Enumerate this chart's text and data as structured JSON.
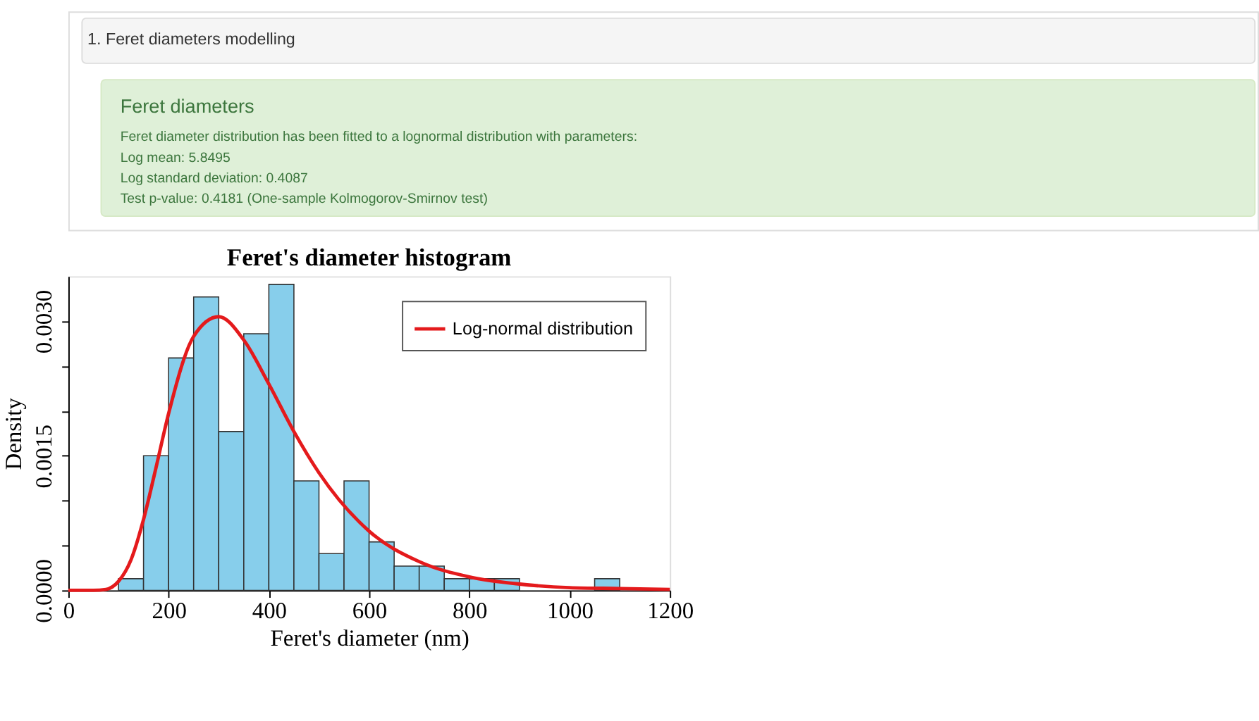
{
  "chart_data": {
    "type": "histogram",
    "title": "Feret's diameter histogram",
    "xlabel": "Feret's diameter (nm)",
    "ylabel": "Density",
    "annotations": [
      "1. Feret diameters modelling",
      "Feret diameters",
      "Feret diameter distribution has been fitted to a lognormal distribution with parameters:",
      "Log mean: 5.8495",
      "Log standard deviation: 0.4087",
      "Test p-value: 0.4181 (One-sample Kolmogorov-Smirnov test)"
    ],
    "bins": [
      100,
      150,
      200,
      250,
      300,
      350,
      400,
      450,
      500,
      550,
      600,
      650,
      700,
      750,
      800,
      850,
      900,
      950,
      1000,
      1050,
      1100
    ],
    "values": [
      0.00013,
      0.0015,
      0.00259,
      0.00327,
      0.00177,
      0.00286,
      0.00341,
      0.00122,
      0.00041,
      0.00122,
      0.00054,
      0.00027,
      0.00027,
      0.00013,
      0.00013,
      0.00013,
      0,
      0,
      0,
      0.00013
    ],
    "color": "#87ceeb",
    "series": [
      {
        "type": "line",
        "name": "Log-normal distribution",
        "color": "#e41a1c",
        "x": [
          0,
          50,
          75,
          100,
          125,
          150,
          175,
          200,
          250,
          300,
          350,
          400,
          450,
          500,
          600,
          700,
          800,
          900,
          1000,
          1100,
          1200
        ],
        "values": [
          0,
          0,
          1e-05,
          0.0001,
          0.00034,
          0.00079,
          0.00137,
          0.00197,
          0.00283,
          0.00305,
          0.00279,
          0.0023,
          0.00177,
          0.00131,
          0.00066,
          0.00032,
          0.00015,
          7e-05,
          3e-05,
          2e-05,
          1e-05
        ]
      }
    ],
    "xlim": [
      0,
      1200
    ],
    "xticks": [
      0,
      200,
      400,
      600,
      800,
      1000,
      1200
    ],
    "ylim": [
      0,
      0.0035
    ],
    "yticks": [
      {
        "value": 0,
        "label": "0.0000"
      },
      {
        "value": 0.0005,
        "label": null
      },
      {
        "value": 0.001,
        "label": null
      },
      {
        "value": 0.0015,
        "label": "0.0015"
      },
      {
        "value": 0.002,
        "label": null
      },
      {
        "value": 0.0025,
        "label": null
      },
      {
        "value": 0.003,
        "label": "0.0030"
      }
    ],
    "legend": "top right",
    "grid": false
  }
}
